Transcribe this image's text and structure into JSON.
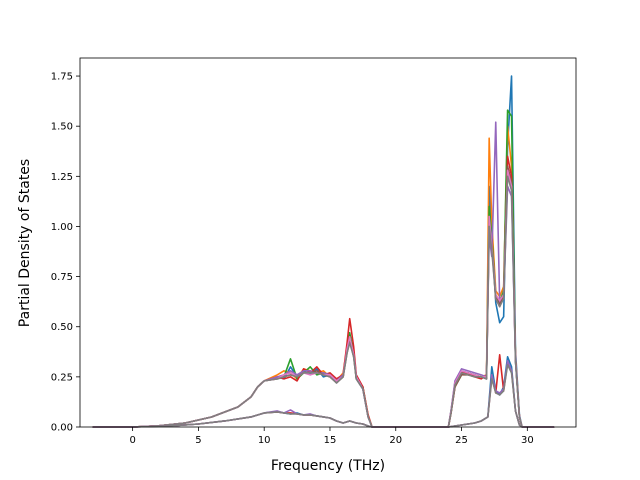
{
  "chart_data": {
    "type": "line",
    "title": "",
    "xlabel": "Frequency (THz)",
    "ylabel": "Partial Density of States",
    "xlim": [
      -4.0,
      33.7
    ],
    "ylim": [
      0.0,
      1.84
    ],
    "xticks": [
      0,
      5,
      10,
      15,
      20,
      25,
      30
    ],
    "yticks": [
      0.0,
      0.25,
      0.5,
      0.75,
      1.0,
      1.25,
      1.5,
      1.75
    ],
    "xtick_labels": [
      "0",
      "5",
      "10",
      "15",
      "20",
      "25",
      "30"
    ],
    "ytick_labels": [
      "0.00",
      "0.25",
      "0.50",
      "0.75",
      "1.00",
      "1.25",
      "1.50",
      "1.75"
    ],
    "grid": false,
    "legend": null,
    "colors": [
      "#1f77b4",
      "#ff7f0e",
      "#2ca02c",
      "#d62728",
      "#9467bd",
      "#8c564b",
      "#e377c2",
      "#7f7f7f",
      "#bcbd22",
      "#17becf"
    ],
    "series": [
      {
        "color": "#1f77b4",
        "x": [
          -3,
          0,
          2,
          4,
          6,
          8,
          9,
          9.5,
          10,
          11,
          11.5,
          12,
          12.5,
          13,
          13.5,
          14,
          14.5,
          15,
          15.5,
          16,
          16.3,
          16.5,
          16.8,
          17,
          17.5,
          17.9,
          18.2,
          24.0,
          24.2,
          24.5,
          25,
          25.5,
          26,
          26.5,
          26.9,
          27.1,
          27.3,
          27.6,
          27.9,
          28.2,
          28.5,
          28.8,
          29.1,
          29.4,
          29.6,
          30,
          32
        ],
        "y": [
          0,
          0,
          0.006,
          0.02,
          0.05,
          0.1,
          0.15,
          0.2,
          0.23,
          0.25,
          0.24,
          0.3,
          0.25,
          0.28,
          0.26,
          0.29,
          0.25,
          0.26,
          0.22,
          0.26,
          0.38,
          0.45,
          0.38,
          0.24,
          0.19,
          0.05,
          0,
          0,
          0.08,
          0.22,
          0.28,
          0.27,
          0.26,
          0.25,
          0.24,
          1.2,
          0.98,
          0.62,
          0.52,
          0.55,
          1.4,
          1.75,
          0.38,
          0.06,
          0,
          0,
          0
        ]
      },
      {
        "color": "#ff7f0e",
        "x": [
          -3,
          0,
          2,
          4,
          6,
          8,
          9,
          9.5,
          10,
          11,
          11.5,
          12,
          12.5,
          13,
          13.5,
          14,
          14.5,
          15,
          15.5,
          16,
          16.3,
          16.5,
          16.8,
          17,
          17.5,
          17.9,
          18.2,
          24.0,
          24.2,
          24.5,
          25,
          25.5,
          26,
          26.5,
          26.9,
          27.1,
          27.3,
          27.6,
          27.9,
          28.2,
          28.5,
          28.8,
          29.1,
          29.4,
          29.6,
          30,
          32
        ],
        "y": [
          0,
          0,
          0.006,
          0.02,
          0.05,
          0.1,
          0.15,
          0.2,
          0.23,
          0.26,
          0.28,
          0.27,
          0.24,
          0.29,
          0.28,
          0.27,
          0.28,
          0.25,
          0.23,
          0.27,
          0.4,
          0.46,
          0.36,
          0.25,
          0.2,
          0.06,
          0,
          0,
          0.07,
          0.21,
          0.27,
          0.26,
          0.26,
          0.25,
          0.26,
          1.44,
          1.02,
          0.68,
          0.65,
          0.7,
          1.5,
          1.3,
          0.35,
          0.05,
          0,
          0,
          0
        ]
      },
      {
        "color": "#2ca02c",
        "x": [
          -3,
          0,
          2,
          4,
          6,
          8,
          9,
          9.5,
          10,
          11,
          11.5,
          12,
          12.5,
          13,
          13.5,
          14,
          14.5,
          15,
          15.5,
          16,
          16.3,
          16.5,
          16.8,
          17,
          17.5,
          17.9,
          18.2,
          24.0,
          24.2,
          24.5,
          25,
          25.5,
          26,
          26.5,
          26.9,
          27.1,
          27.3,
          27.6,
          27.9,
          28.2,
          28.5,
          28.8,
          29.1,
          29.4,
          29.6,
          30,
          32
        ],
        "y": [
          0,
          0,
          0.006,
          0.02,
          0.05,
          0.1,
          0.15,
          0.2,
          0.23,
          0.24,
          0.25,
          0.34,
          0.24,
          0.27,
          0.3,
          0.26,
          0.27,
          0.26,
          0.23,
          0.25,
          0.39,
          0.47,
          0.37,
          0.24,
          0.2,
          0.05,
          0,
          0,
          0.08,
          0.2,
          0.26,
          0.27,
          0.26,
          0.25,
          0.25,
          1.1,
          0.95,
          0.66,
          0.62,
          0.68,
          1.58,
          1.55,
          0.33,
          0.05,
          0,
          0,
          0
        ]
      },
      {
        "color": "#d62728",
        "x": [
          -3,
          0,
          2,
          4,
          6,
          8,
          9,
          9.5,
          10,
          11,
          11.5,
          12,
          12.5,
          13,
          13.5,
          14,
          14.5,
          15,
          15.5,
          16,
          16.3,
          16.5,
          16.8,
          17,
          17.5,
          17.9,
          18.2,
          24.0,
          24.2,
          24.5,
          25,
          25.5,
          26,
          26.5,
          26.9,
          27.1,
          27.3,
          27.6,
          27.9,
          28.2,
          28.5,
          28.8,
          29.1,
          29.4,
          29.6,
          30,
          32
        ],
        "y": [
          0,
          0,
          0.006,
          0.02,
          0.05,
          0.1,
          0.15,
          0.2,
          0.23,
          0.25,
          0.24,
          0.25,
          0.23,
          0.29,
          0.27,
          0.3,
          0.26,
          0.27,
          0.24,
          0.26,
          0.42,
          0.54,
          0.4,
          0.26,
          0.2,
          0.06,
          0,
          0,
          0.07,
          0.2,
          0.27,
          0.27,
          0.25,
          0.24,
          0.26,
          1.0,
          0.9,
          0.64,
          0.6,
          0.66,
          1.35,
          1.25,
          0.34,
          0.05,
          0,
          0,
          0
        ]
      },
      {
        "color": "#9467bd",
        "x": [
          -3,
          0,
          2,
          4,
          6,
          8,
          9,
          9.5,
          10,
          11,
          11.5,
          12,
          12.5,
          13,
          13.5,
          14,
          14.5,
          15,
          15.5,
          16,
          16.3,
          16.5,
          16.8,
          17,
          17.5,
          17.9,
          18.2,
          24.0,
          24.2,
          24.5,
          25,
          25.5,
          26,
          26.5,
          26.9,
          27.1,
          27.3,
          27.6,
          27.9,
          28.2,
          28.5,
          28.8,
          29.1,
          29.4,
          29.6,
          30,
          32
        ],
        "y": [
          0,
          0,
          0.006,
          0.02,
          0.05,
          0.1,
          0.15,
          0.2,
          0.23,
          0.25,
          0.26,
          0.28,
          0.26,
          0.28,
          0.28,
          0.27,
          0.27,
          0.26,
          0.23,
          0.26,
          0.38,
          0.44,
          0.36,
          0.25,
          0.19,
          0.05,
          0,
          0,
          0.08,
          0.23,
          0.29,
          0.28,
          0.27,
          0.26,
          0.25,
          0.95,
          0.85,
          1.52,
          0.62,
          0.64,
          1.2,
          1.15,
          0.33,
          0.05,
          0,
          0,
          0
        ]
      },
      {
        "color": "#8c564b",
        "x": [
          -3,
          0,
          2,
          4,
          6,
          8,
          9,
          9.5,
          10,
          11,
          11.5,
          12,
          12.5,
          13,
          13.5,
          14,
          14.5,
          15,
          15.5,
          16,
          16.3,
          16.5,
          16.8,
          17,
          17.5,
          17.9,
          18.2,
          24.0,
          24.2,
          24.5,
          25,
          25.5,
          26,
          26.5,
          26.9,
          27.1,
          27.3,
          27.6,
          27.9,
          28.2,
          28.5,
          28.8,
          29.1,
          29.4,
          29.6,
          30,
          32
        ],
        "y": [
          0,
          0,
          0.006,
          0.02,
          0.05,
          0.1,
          0.15,
          0.2,
          0.23,
          0.24,
          0.25,
          0.26,
          0.25,
          0.27,
          0.27,
          0.28,
          0.26,
          0.25,
          0.22,
          0.25,
          0.37,
          0.43,
          0.35,
          0.24,
          0.19,
          0.05,
          0,
          0,
          0.07,
          0.2,
          0.26,
          0.26,
          0.25,
          0.25,
          0.24,
          1.02,
          0.92,
          0.65,
          0.61,
          0.65,
          1.3,
          1.22,
          0.34,
          0.05,
          0,
          0,
          0
        ]
      },
      {
        "color": "#e377c2",
        "x": [
          -3,
          0,
          2,
          4,
          6,
          8,
          9,
          9.5,
          10,
          11,
          11.5,
          12,
          12.5,
          13,
          13.5,
          14,
          14.5,
          15,
          15.5,
          16,
          16.3,
          16.5,
          16.8,
          17,
          17.5,
          17.9,
          18.2,
          24.0,
          24.2,
          24.5,
          25,
          25.5,
          26,
          26.5,
          26.9,
          27.1,
          27.3,
          27.6,
          27.9,
          28.2,
          28.5,
          28.8,
          29.1,
          29.4,
          29.6,
          30,
          32
        ],
        "y": [
          0,
          0,
          0.006,
          0.02,
          0.05,
          0.1,
          0.15,
          0.2,
          0.23,
          0.24,
          0.26,
          0.27,
          0.25,
          0.27,
          0.26,
          0.27,
          0.26,
          0.26,
          0.23,
          0.25,
          0.39,
          0.45,
          0.36,
          0.25,
          0.19,
          0.05,
          0,
          0,
          0.08,
          0.22,
          0.28,
          0.27,
          0.26,
          0.25,
          0.25,
          1.05,
          0.9,
          0.66,
          0.63,
          0.66,
          1.28,
          1.2,
          0.34,
          0.05,
          0,
          0,
          0
        ]
      },
      {
        "color": "#7f7f7f",
        "x": [
          -3,
          0,
          2,
          4,
          6,
          8,
          9,
          9.5,
          10,
          11,
          11.5,
          12,
          12.5,
          13,
          13.5,
          14,
          14.5,
          15,
          15.5,
          16,
          16.3,
          16.5,
          16.8,
          17,
          17.5,
          17.9,
          18.2,
          24.0,
          24.2,
          24.5,
          25,
          25.5,
          26,
          26.5,
          26.9,
          27.1,
          27.3,
          27.6,
          27.9,
          28.2,
          28.5,
          28.8,
          29.1,
          29.4,
          29.6,
          30,
          32
        ],
        "y": [
          0,
          0,
          0.006,
          0.02,
          0.05,
          0.1,
          0.15,
          0.2,
          0.23,
          0.24,
          0.25,
          0.26,
          0.25,
          0.27,
          0.27,
          0.27,
          0.26,
          0.25,
          0.22,
          0.25,
          0.37,
          0.42,
          0.35,
          0.24,
          0.19,
          0.05,
          0,
          0,
          0.07,
          0.21,
          0.27,
          0.26,
          0.25,
          0.25,
          0.24,
          1.0,
          0.88,
          0.64,
          0.6,
          0.64,
          1.25,
          1.18,
          0.33,
          0.05,
          0,
          0,
          0
        ]
      },
      {
        "color": "#1f77b4",
        "x": [
          -3,
          0,
          3,
          5,
          7,
          9,
          10,
          11,
          11.5,
          12,
          12.5,
          13,
          13.5,
          14,
          14.5,
          15,
          15.5,
          16,
          16.5,
          17,
          17.5,
          17.9,
          18.2,
          24.0,
          25,
          26,
          26.5,
          27,
          27.3,
          27.6,
          27.9,
          28.2,
          28.5,
          28.8,
          29.1,
          29.4,
          29.6,
          30,
          32
        ],
        "y": [
          0,
          0,
          0.006,
          0.015,
          0.03,
          0.05,
          0.07,
          0.075,
          0.07,
          0.065,
          0.07,
          0.06,
          0.06,
          0.055,
          0.05,
          0.045,
          0.03,
          0.02,
          0.03,
          0.02,
          0.015,
          0.005,
          0,
          0,
          0.01,
          0.02,
          0.03,
          0.05,
          0.3,
          0.18,
          0.16,
          0.2,
          0.35,
          0.3,
          0.08,
          0.01,
          0,
          0,
          0
        ]
      },
      {
        "color": "#d62728",
        "x": [
          -3,
          0,
          3,
          5,
          7,
          9,
          10,
          11,
          11.5,
          12,
          12.5,
          13,
          13.5,
          14,
          14.5,
          15,
          15.5,
          16,
          16.5,
          17,
          17.5,
          17.9,
          18.2,
          24.0,
          25,
          26,
          26.5,
          27,
          27.3,
          27.6,
          27.9,
          28.2,
          28.5,
          28.8,
          29.1,
          29.4,
          29.6,
          30,
          32
        ],
        "y": [
          0,
          0,
          0.006,
          0.015,
          0.03,
          0.05,
          0.07,
          0.075,
          0.07,
          0.07,
          0.065,
          0.06,
          0.06,
          0.055,
          0.05,
          0.045,
          0.03,
          0.02,
          0.03,
          0.02,
          0.015,
          0.005,
          0,
          0,
          0.01,
          0.02,
          0.03,
          0.05,
          0.25,
          0.17,
          0.36,
          0.18,
          0.32,
          0.28,
          0.08,
          0.01,
          0,
          0,
          0
        ]
      },
      {
        "color": "#9467bd",
        "x": [
          -3,
          0,
          3,
          5,
          7,
          9,
          10,
          11,
          11.5,
          12,
          12.5,
          13,
          13.5,
          14,
          14.5,
          15,
          15.5,
          16,
          16.5,
          17,
          17.5,
          17.9,
          18.2,
          24.0,
          25,
          26,
          26.5,
          27,
          27.3,
          27.6,
          27.9,
          28.2,
          28.5,
          28.8,
          29.1,
          29.4,
          29.6,
          30,
          32
        ],
        "y": [
          0,
          0,
          0.006,
          0.015,
          0.03,
          0.05,
          0.07,
          0.08,
          0.07,
          0.085,
          0.065,
          0.06,
          0.065,
          0.055,
          0.05,
          0.045,
          0.03,
          0.02,
          0.03,
          0.02,
          0.015,
          0.005,
          0,
          0,
          0.01,
          0.02,
          0.03,
          0.05,
          0.26,
          0.18,
          0.17,
          0.19,
          0.33,
          0.28,
          0.08,
          0.01,
          0,
          0,
          0
        ]
      },
      {
        "color": "#7f7f7f",
        "x": [
          -3,
          0,
          3,
          5,
          7,
          9,
          10,
          11,
          11.5,
          12,
          12.5,
          13,
          13.5,
          14,
          14.5,
          15,
          15.5,
          16,
          16.5,
          17,
          17.5,
          17.9,
          18.2,
          24.0,
          25,
          26,
          26.5,
          27,
          27.3,
          27.6,
          27.9,
          28.2,
          28.5,
          28.8,
          29.1,
          29.4,
          29.6,
          30,
          32
        ],
        "y": [
          0,
          0,
          0.006,
          0.015,
          0.03,
          0.05,
          0.07,
          0.075,
          0.07,
          0.065,
          0.065,
          0.06,
          0.06,
          0.055,
          0.05,
          0.045,
          0.03,
          0.02,
          0.03,
          0.02,
          0.015,
          0.005,
          0,
          0,
          0.01,
          0.02,
          0.03,
          0.05,
          0.24,
          0.17,
          0.16,
          0.18,
          0.31,
          0.27,
          0.08,
          0.01,
          0,
          0,
          0
        ]
      }
    ]
  }
}
